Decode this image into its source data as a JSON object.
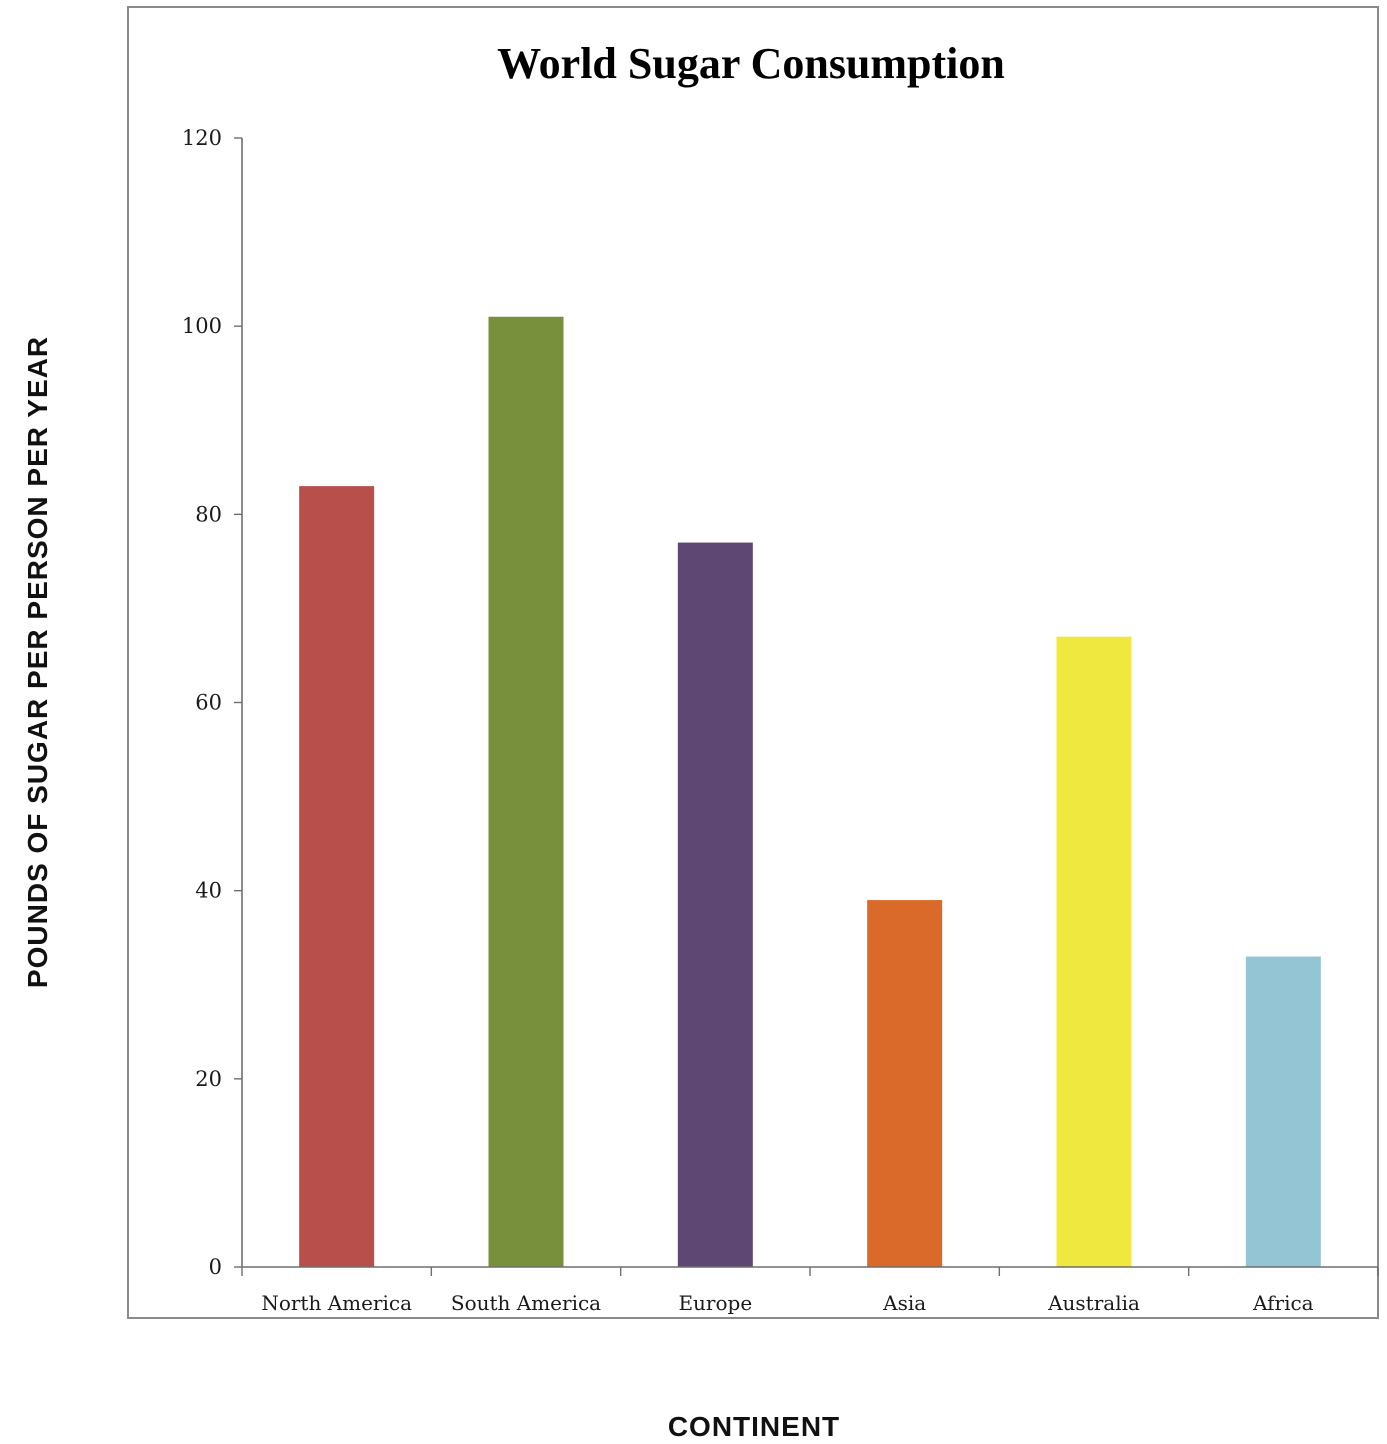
{
  "chart_data": {
    "type": "bar",
    "title": "World Sugar Consumption",
    "xlabel": "CONTINENT",
    "ylabel": "POUNDS OF SUGAR PER PERSON PER YEAR",
    "categories": [
      "North America",
      "South America",
      "Europe",
      "Asia",
      "Australia",
      "Africa"
    ],
    "values": [
      83,
      101,
      77,
      39,
      67,
      33
    ],
    "colors": [
      "#b84f4b",
      "#788f3b",
      "#5f4773",
      "#d96a29",
      "#efe83e",
      "#93c5d5"
    ],
    "ylim": [
      0,
      120
    ],
    "yticks": [
      "0",
      "20",
      "40",
      "60",
      "80",
      "100",
      "120"
    ],
    "grid": false,
    "legend": "none"
  }
}
